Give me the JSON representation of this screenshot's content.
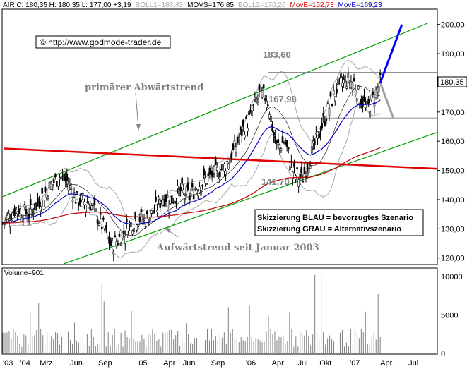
{
  "header": {
    "parts": [
      {
        "text": "AIR C: 180,35 H: 180,35 L: 177,00 +3,19",
        "color": "#000000"
      },
      {
        "text": "BOLL1=183,43",
        "color": "#a8a8a8"
      },
      {
        "text": "MOVS=176,85",
        "color": "#000000"
      },
      {
        "text": "BOLL2=170,26",
        "color": "#a8a8a8"
      },
      {
        "text": "MovE=152,73",
        "color": "#e00000"
      },
      {
        "text": "MovE=169,23",
        "color": "#0000c0"
      }
    ]
  },
  "watermark": "© http://www.godmode-trader.de",
  "annotations": {
    "primary": "primärer Abwärtstrend",
    "uptrend": "Aufwärtstrend seit Januar 2003",
    "lvl_high": "183,60",
    "lvl_mid": "167,98",
    "lvl_low": "141,70",
    "legend_blue": "Skizzierung BLAU = bevorzugtes Szenario",
    "legend_gray": "Skizzierung GRAU = Alternativszenario"
  },
  "price_axis": {
    "ticks": [
      "200,00",
      "190,00",
      "180,00",
      "170,00",
      "160,00",
      "150,00",
      "140,00",
      "130,00",
      "120,00"
    ],
    "current": "180,35"
  },
  "volume": {
    "label": "Volume=901",
    "ticks": [
      "10000",
      "5000",
      "0"
    ]
  },
  "x_axis": {
    "labels": [
      "'03",
      "'04",
      "Mrz",
      "Jun",
      "Sep",
      "'05",
      "Apr",
      "Jun",
      "Sep",
      "'06",
      "Apr",
      "Jul",
      "Okt",
      "'07",
      "Apr",
      "Jul"
    ]
  },
  "colors": {
    "up_bar": "#000000",
    "trend_green": "#00a000",
    "resistance_red": "#e00000",
    "ema_red": "#c00000",
    "ema_blue": "#0000c0",
    "boll": "#a8a8a8",
    "scenario_blue": "#0000ff",
    "scenario_gray": "#a0a0a0"
  },
  "chart_data": {
    "type": "candlestick",
    "title": "",
    "ylim": [
      118,
      205
    ],
    "y_ticks": [
      120,
      130,
      140,
      150,
      160,
      170,
      180,
      190,
      200
    ],
    "levels": [
      183.6,
      167.98,
      141.7
    ],
    "close_path": [
      [
        0.0,
        132
      ],
      [
        0.03,
        137
      ],
      [
        0.06,
        135
      ],
      [
        0.1,
        143
      ],
      [
        0.13,
        148
      ],
      [
        0.15,
        146
      ],
      [
        0.17,
        140
      ],
      [
        0.2,
        139
      ],
      [
        0.23,
        131
      ],
      [
        0.25,
        124
      ],
      [
        0.27,
        127
      ],
      [
        0.29,
        131
      ],
      [
        0.31,
        134
      ],
      [
        0.33,
        133
      ],
      [
        0.35,
        136
      ],
      [
        0.37,
        141
      ],
      [
        0.39,
        140
      ],
      [
        0.41,
        143
      ],
      [
        0.43,
        141
      ],
      [
        0.45,
        145
      ],
      [
        0.47,
        147
      ],
      [
        0.49,
        149
      ],
      [
        0.51,
        151
      ],
      [
        0.53,
        156
      ],
      [
        0.55,
        163
      ],
      [
        0.57,
        168
      ],
      [
        0.59,
        176
      ],
      [
        0.61,
        175
      ],
      [
        0.62,
        166
      ],
      [
        0.63,
        158
      ],
      [
        0.65,
        160
      ],
      [
        0.67,
        149
      ],
      [
        0.69,
        147
      ],
      [
        0.71,
        155
      ],
      [
        0.73,
        163
      ],
      [
        0.75,
        171
      ],
      [
        0.77,
        178
      ],
      [
        0.79,
        181
      ],
      [
        0.81,
        180
      ],
      [
        0.82,
        176
      ],
      [
        0.84,
        171
      ],
      [
        0.855,
        175
      ],
      [
        0.87,
        180
      ]
    ],
    "scenario_blue": [
      [
        0.87,
        180
      ],
      [
        0.92,
        200
      ]
    ],
    "scenario_gray": [
      [
        0.87,
        180
      ],
      [
        0.9,
        168
      ]
    ],
    "volume_max": 11000
  }
}
